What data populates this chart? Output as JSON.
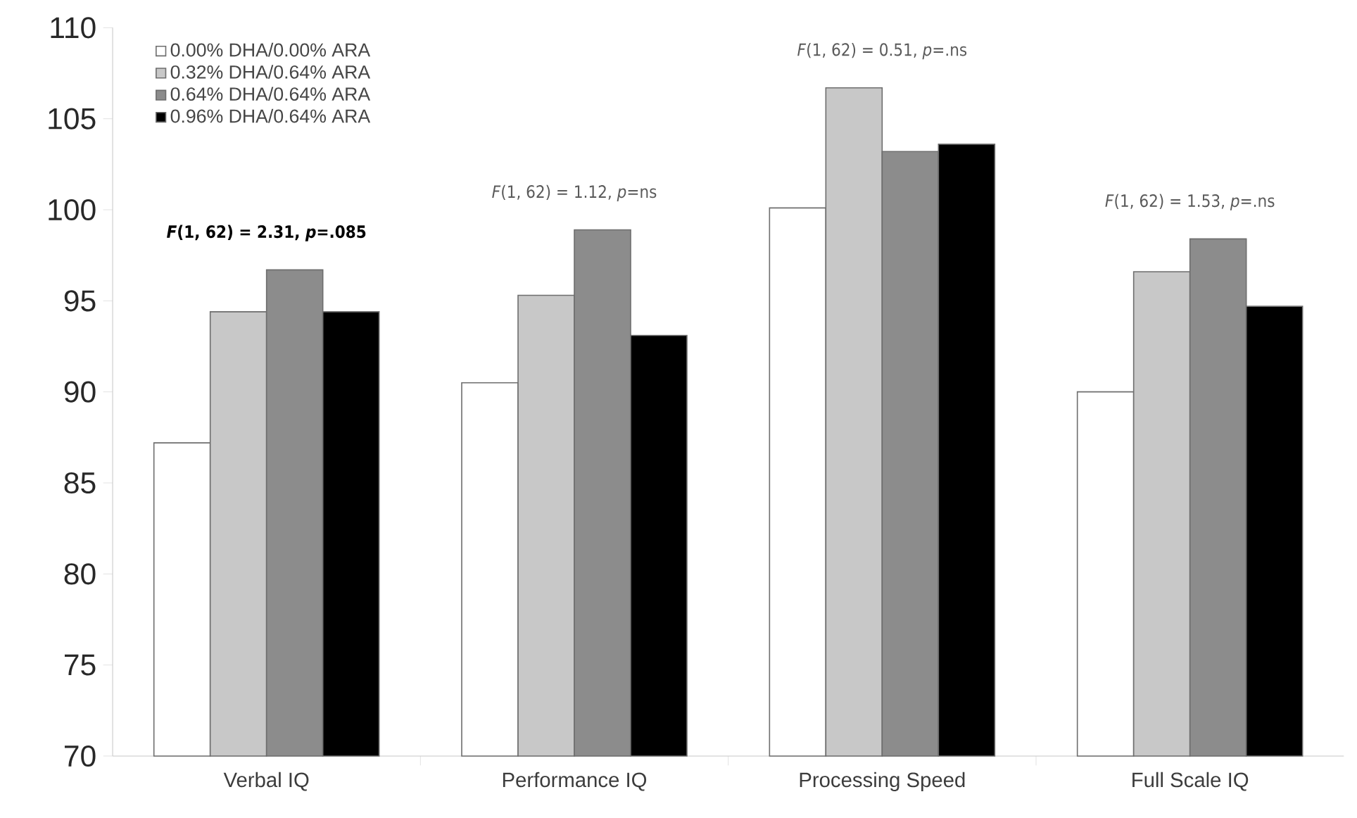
{
  "chart_data": {
    "type": "bar",
    "categories": [
      "Verbal IQ",
      "Performance IQ",
      "Processing Speed",
      "Full Scale IQ"
    ],
    "series": [
      {
        "name": "0.00% DHA/0.00% ARA",
        "color": "#ffffff",
        "values": [
          87.2,
          90.5,
          100.1,
          90.0
        ]
      },
      {
        "name": "0.32% DHA/0.64% ARA",
        "color": "#c8c8c8",
        "values": [
          94.4,
          95.3,
          106.7,
          96.6
        ]
      },
      {
        "name": "0.64% DHA/0.64% ARA",
        "color": "#8c8c8c",
        "values": [
          96.7,
          98.9,
          103.2,
          98.4
        ]
      },
      {
        "name": "0.96% DHA/0.64% ARA",
        "color": "#000000",
        "values": [
          94.4,
          93.1,
          103.6,
          94.7
        ]
      }
    ],
    "ylim": [
      70,
      110
    ],
    "yticks": [
      70,
      75,
      80,
      85,
      90,
      95,
      100,
      105,
      110
    ],
    "annotations": [
      {
        "text": "*F*(1, 62) = 2.31, *p*=.085",
        "x": "Verbal IQ",
        "y": 96.7
      },
      {
        "text": "*F*(1, 62) = 1.12, *p*=ns",
        "x": "Performance IQ",
        "y": 98.9
      },
      {
        "text": "*F*(1, 62) = 0.51, *p*=.ns",
        "x": "Processing Speed",
        "y": 106.7
      },
      {
        "text": "*F*(1, 62) = 1.53, *p*=.ns",
        "x": "Full Scale IQ",
        "y": 98.4
      }
    ],
    "grid": false,
    "legend": "top left"
  }
}
